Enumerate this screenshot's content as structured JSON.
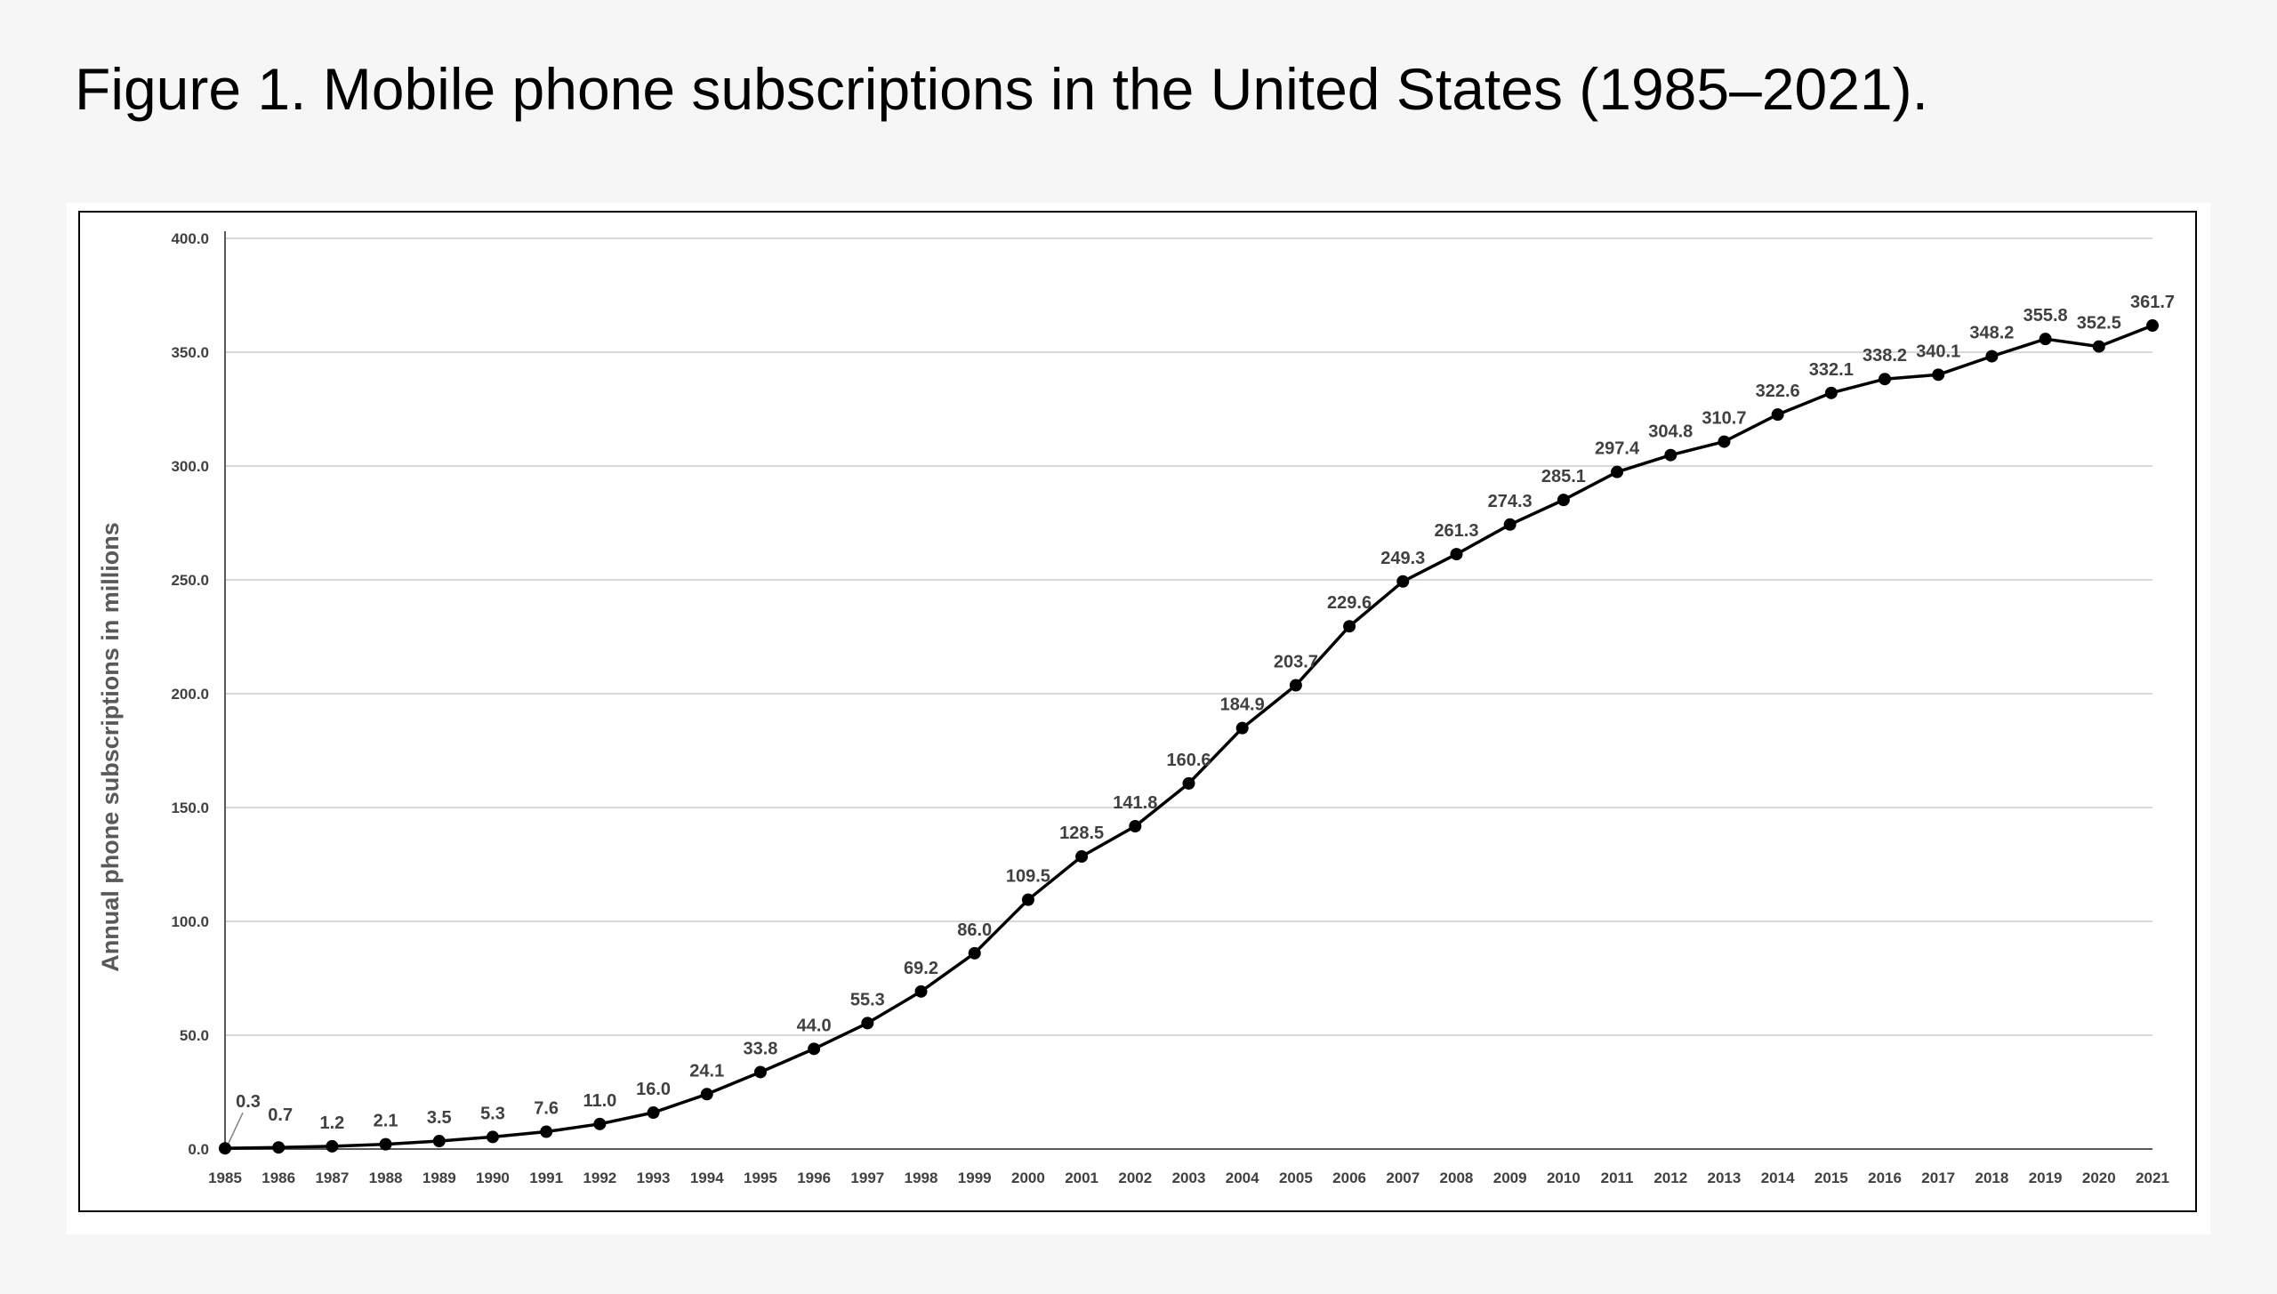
{
  "caption": "Figure 1. Mobile phone subscriptions in the United States (1985–2021).",
  "colors": {
    "page_background": "#f6f6f6",
    "panel_background": "#ffffff",
    "line": "#000000",
    "gridline": "#d9d9d9",
    "label_text": "#404040",
    "axis_title_text": "#595959"
  },
  "chart_data": {
    "type": "line",
    "title": "",
    "xlabel": "",
    "ylabel": "Annual phone subscriptions in millions",
    "ylim": [
      0,
      400
    ],
    "y_ticks": [
      "0.0",
      "50.0",
      "100.0",
      "150.0",
      "200.0",
      "250.0",
      "300.0",
      "350.0",
      "400.0"
    ],
    "grid": true,
    "legend": false,
    "markers": "circle",
    "categories": [
      "1985",
      "1986",
      "1987",
      "1988",
      "1989",
      "1990",
      "1991",
      "1992",
      "1993",
      "1994",
      "1995",
      "1996",
      "1997",
      "1998",
      "1999",
      "2000",
      "2001",
      "2002",
      "2003",
      "2004",
      "2005",
      "2006",
      "2007",
      "2008",
      "2009",
      "2010",
      "2011",
      "2012",
      "2013",
      "2014",
      "2015",
      "2016",
      "2017",
      "2018",
      "2019",
      "2020",
      "2021"
    ],
    "series": [
      {
        "values": [
          0.3,
          0.7,
          1.2,
          2.1,
          3.5,
          5.3,
          7.6,
          11.0,
          16.0,
          24.1,
          33.8,
          44.0,
          55.3,
          69.2,
          86.0,
          109.5,
          128.5,
          141.8,
          160.6,
          184.9,
          203.7,
          229.6,
          249.3,
          261.3,
          274.3,
          285.1,
          297.4,
          304.8,
          310.7,
          322.6,
          332.1,
          338.2,
          340.1,
          348.2,
          355.8,
          352.5,
          361.7
        ],
        "data_labels": [
          "0.3",
          "0.7",
          "1.2",
          "2.1",
          "3.5",
          "5.3",
          "7.6",
          "11.0",
          "16.0",
          "24.1",
          "33.8",
          "44.0",
          "55.3",
          "69.2",
          "86.0",
          "109.5",
          "128.5",
          "141.8",
          "160.6",
          "184.9",
          "203.7",
          "229.6",
          "249.3",
          "261.3",
          "274.3",
          "285.1",
          "297.4",
          "304.8",
          "310.7",
          "322.6",
          "332.1",
          "338.2",
          "340.1",
          "348.2",
          "355.8",
          "352.5",
          "361.7"
        ]
      }
    ]
  }
}
